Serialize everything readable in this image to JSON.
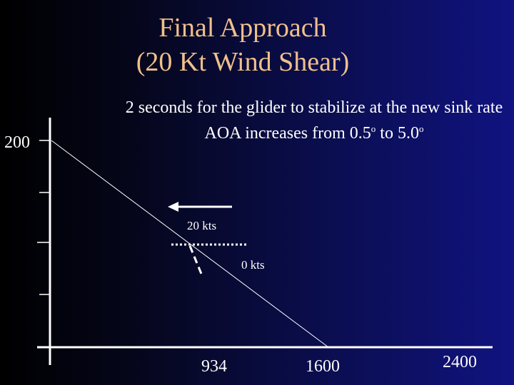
{
  "title": {
    "line1": "Final Approach",
    "line2": "(20 Kt Wind Shear)"
  },
  "subtitle": {
    "line1": "2 seconds for the glider to stabilize at the new sink rate",
    "line2_text": "AOA increases from 0.5",
    "line2_mid": " to 5.0",
    "degree_mark": "o"
  },
  "y_axis": {
    "tick_label": "200"
  },
  "x_axis": {
    "tick_labels": [
      "934",
      "1600",
      "2400"
    ]
  },
  "annotations": {
    "wind_20": "20 kts",
    "wind_0": "0 kts"
  },
  "colors": {
    "title": "#f0c08a",
    "text": "#ffffff",
    "lines": "#ffffff"
  }
}
